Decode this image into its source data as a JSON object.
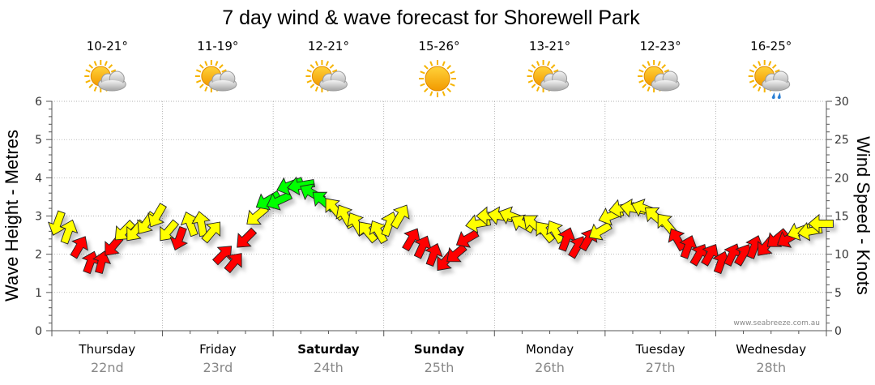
{
  "chart_data": {
    "type": "line",
    "title": "7 day wind & wave forecast for Shorewell Park",
    "ylabel_left": "Wave Height - Metres",
    "ylabel_right": "Wind Speed - Knots",
    "ylim_left": [
      0,
      6
    ],
    "ylim_right": [
      0,
      30
    ],
    "yticks_left": [
      "0",
      "1",
      "2",
      "3",
      "4",
      "5",
      "6"
    ],
    "yticks_right": [
      "0",
      "5",
      "10",
      "15",
      "20",
      "25",
      "30"
    ],
    "credit": "www.seabreeze.com.au",
    "days": [
      {
        "name": "Thursday",
        "date": "22nd",
        "bold": false,
        "temp": "10-21°",
        "icon": "partly-cloudy-icon"
      },
      {
        "name": "Friday",
        "date": "23rd",
        "bold": false,
        "temp": "11-19°",
        "icon": "partly-cloudy-icon"
      },
      {
        "name": "Saturday",
        "date": "24th",
        "bold": true,
        "temp": "12-21°",
        "icon": "partly-cloudy-icon"
      },
      {
        "name": "Sunday",
        "date": "25th",
        "bold": true,
        "temp": "15-26°",
        "icon": "sunny-icon"
      },
      {
        "name": "Monday",
        "date": "26th",
        "bold": false,
        "temp": "13-21°",
        "icon": "partly-cloudy-icon"
      },
      {
        "name": "Tuesday",
        "date": "27th",
        "bold": false,
        "temp": "12-23°",
        "icon": "partly-cloudy-icon"
      },
      {
        "name": "Wednesday",
        "date": "28th",
        "bold": false,
        "temp": "16-25°",
        "icon": "showers-icon"
      }
    ],
    "wind_series": {
      "name": "Wind",
      "unit": "knots",
      "x_days": [
        0.05,
        0.15,
        0.25,
        0.35,
        0.45,
        0.55,
        0.65,
        0.75,
        0.85,
        0.95,
        1.05,
        1.15,
        1.25,
        1.35,
        1.45,
        1.55,
        1.65,
        1.75,
        1.85,
        1.95,
        2.05,
        2.15,
        2.25,
        2.35,
        2.45,
        2.55,
        2.65,
        2.75,
        2.85,
        2.95,
        3.05,
        3.15,
        3.25,
        3.35,
        3.45,
        3.55,
        3.65,
        3.75,
        3.85,
        3.95,
        4.05,
        4.15,
        4.25,
        4.35,
        4.45,
        4.55,
        4.65,
        4.75,
        4.85,
        4.95,
        5.05,
        5.15,
        5.25,
        5.35,
        5.45,
        5.55,
        5.65,
        5.75,
        5.85,
        5.95,
        6.05,
        6.15,
        6.25,
        6.35,
        6.45,
        6.55,
        6.65,
        6.75,
        6.85,
        6.95
      ],
      "speed": [
        14,
        13,
        11,
        9,
        9,
        11,
        13,
        13,
        14,
        15,
        13,
        12,
        14,
        14,
        13,
        10,
        9,
        12,
        15,
        17,
        17,
        19,
        19,
        18,
        17,
        16,
        15,
        14,
        13,
        13,
        14,
        15,
        12,
        11,
        10,
        9,
        10,
        12,
        14,
        15,
        15,
        15,
        14,
        14,
        13,
        13,
        12,
        11,
        12,
        13,
        15,
        16,
        16,
        16,
        15,
        14,
        12,
        11,
        10,
        10,
        9,
        10,
        10,
        11,
        11,
        12,
        12,
        13,
        13,
        14
      ],
      "direction_deg": [
        20,
        200,
        210,
        200,
        195,
        40,
        45,
        40,
        35,
        30,
        40,
        20,
        160,
        170,
        220,
        225,
        220,
        45,
        50,
        60,
        65,
        70,
        80,
        120,
        130,
        140,
        150,
        150,
        140,
        150,
        200,
        210,
        210,
        205,
        200,
        40,
        50,
        60,
        80,
        90,
        100,
        110,
        120,
        130,
        140,
        150,
        200,
        210,
        210,
        60,
        70,
        80,
        100,
        110,
        130,
        140,
        150,
        200,
        210,
        210,
        200,
        205,
        210,
        200,
        40,
        50,
        60,
        70,
        80,
        90
      ],
      "color_levels": {
        "red": "#ff0000",
        "yellow": "#ffff00",
        "green": "#00ff00"
      }
    },
    "wave_series": {
      "name": "Wave Height",
      "unit": "metres",
      "note": "shown as the vertical position of the wind arrows"
    }
  }
}
